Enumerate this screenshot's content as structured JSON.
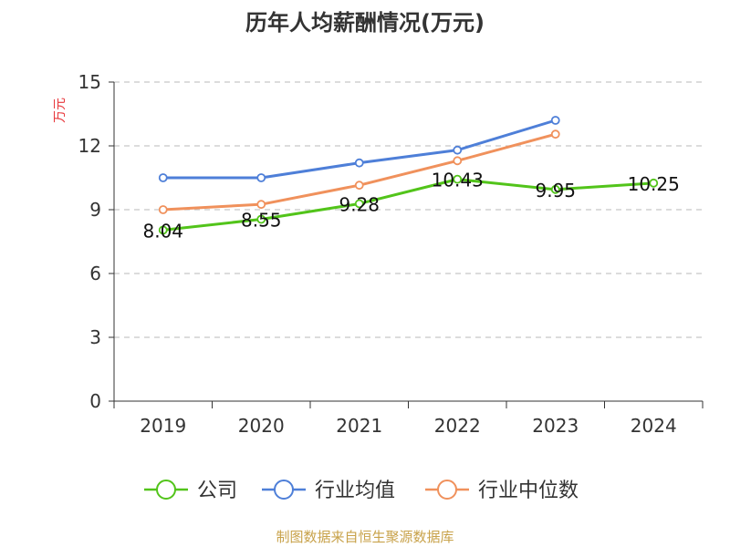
{
  "chart_data": {
    "type": "line",
    "title": "历年人均薪酬情况(万元)",
    "ylabel": "万元",
    "xlabel": "",
    "categories": [
      "2019",
      "2020",
      "2021",
      "2022",
      "2023",
      "2024"
    ],
    "ylim": [
      0,
      15
    ],
    "yticks": [
      "0",
      "3",
      "6",
      "9",
      "12",
      "15"
    ],
    "grid": true,
    "legend_position": "bottom",
    "series": [
      {
        "name": "公司",
        "color": "#52c41a",
        "values": [
          8.04,
          8.55,
          9.28,
          10.43,
          9.95,
          10.25
        ],
        "data_labels": [
          "8.04",
          "8.55",
          "9.28",
          "10.43",
          "9.95",
          "10.25"
        ]
      },
      {
        "name": "行业均值",
        "color": "#4e7fd8",
        "values": [
          10.5,
          10.5,
          11.2,
          11.8,
          13.2,
          null
        ]
      },
      {
        "name": "行业中位数",
        "color": "#f0915c",
        "values": [
          9.0,
          9.25,
          10.15,
          11.3,
          12.55,
          null
        ]
      }
    ]
  },
  "source": "制图数据来自恒生聚源数据库"
}
